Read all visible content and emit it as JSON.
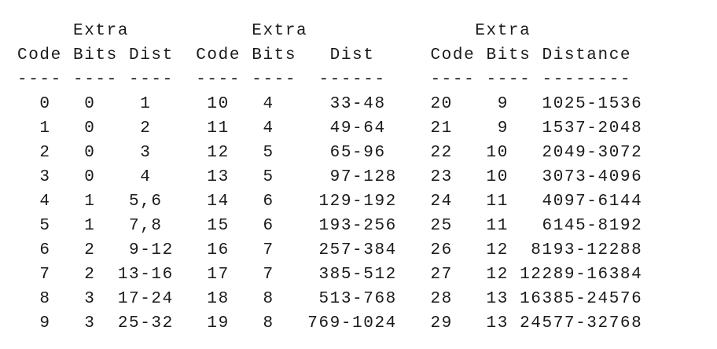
{
  "table": {
    "header_lines": [
      "     Extra           Extra               Extra",
      "Code Bits Dist  Code Bits   Dist     Code Bits Distance",
      "---- ---- ----  ---- ----  ------    ---- ---- --------"
    ],
    "rows": [
      "  0   0    1     10   4     33-48    20    9   1025-1536",
      "  1   0    2     11   4     49-64    21    9   1537-2048",
      "  2   0    3     12   5     65-96    22   10   2049-3072",
      "  3   0    4     13   5     97-128   23   10   3073-4096",
      "  4   1   5,6    14   6    129-192   24   11   4097-6144",
      "  5   1   7,8    15   6    193-256   25   11   6145-8192",
      "  6   2   9-12   16   7    257-384   26   12  8193-12288",
      "  7   2  13-16   17   7    385-512   27   12 12289-16384",
      "  8   3  17-24   18   8    513-768   28   13 16385-24576",
      "  9   3  25-32   19   8   769-1024   29   13 24577-32768"
    ]
  }
}
